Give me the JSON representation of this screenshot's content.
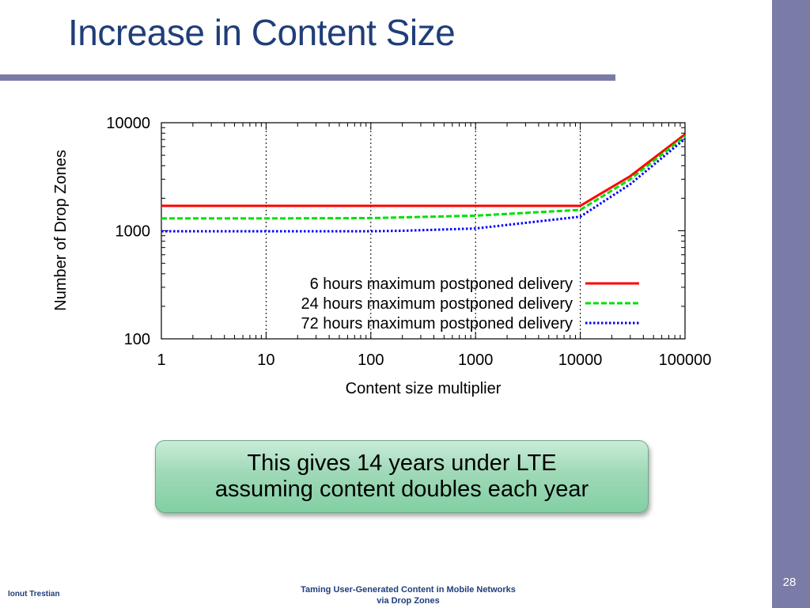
{
  "slide": {
    "title": "Increase in Content Size",
    "callout_line1": "This gives 14 years under LTE",
    "callout_line2": "assuming content doubles each year",
    "footer_author": "Ionut Trestian",
    "footer_title_line1": "Taming User-Generated  Content in Mobile Networks",
    "footer_title_line2": "via Drop Zones",
    "slide_number": "28",
    "accent_color": "#7b7ba8",
    "title_color": "#1f3e79"
  },
  "chart_data": {
    "type": "line",
    "xlabel": "Content size multiplier",
    "ylabel": "Number of Drop Zones",
    "x_scale": "log",
    "y_scale": "log",
    "xlim": [
      1,
      100000
    ],
    "ylim": [
      100,
      10000
    ],
    "x_ticks": [
      "1",
      "10",
      "100",
      "1000",
      "10000",
      "100000"
    ],
    "y_ticks": [
      "100",
      "1000",
      "10000"
    ],
    "vertical_grid": true,
    "legend_position": "lower-right",
    "series": [
      {
        "name": "6 hours maximum postponed delivery",
        "color": "#ff0000",
        "style": "solid",
        "x": [
          1,
          10,
          100,
          1000,
          10000,
          30000,
          100000
        ],
        "y": [
          1700,
          1700,
          1700,
          1700,
          1700,
          3200,
          7800
        ]
      },
      {
        "name": "24 hours maximum postponed delivery",
        "color": "#00e000",
        "style": "dashed",
        "x": [
          1,
          10,
          100,
          1000,
          10000,
          30000,
          100000
        ],
        "y": [
          1300,
          1300,
          1310,
          1380,
          1560,
          3000,
          7500
        ]
      },
      {
        "name": "72 hours maximum postponed delivery",
        "color": "#0000ff",
        "style": "dotted",
        "x": [
          1,
          10,
          100,
          200,
          1000,
          10000,
          30000,
          100000
        ],
        "y": [
          990,
          990,
          990,
          1000,
          1050,
          1350,
          2700,
          7100
        ]
      }
    ]
  }
}
